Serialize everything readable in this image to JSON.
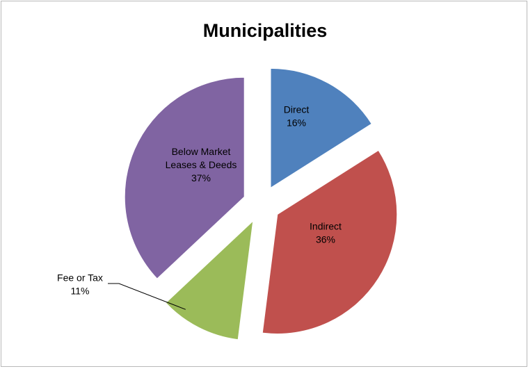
{
  "chart_data": {
    "type": "pie",
    "title": "Municipalities",
    "slices": [
      {
        "label": "Direct",
        "value": 16,
        "display": "16%",
        "color": "#4F81BD"
      },
      {
        "label": "Indirect",
        "value": 36,
        "display": "36%",
        "color": "#C0504D"
      },
      {
        "label": "Fee or Tax",
        "value": 11,
        "display": "11%",
        "color": "#9BBB59"
      },
      {
        "label": "Below Market Leases & Deeds",
        "display": "37%",
        "value": 37,
        "color": "#8064A2"
      }
    ],
    "legend": "none",
    "exploded": true
  }
}
